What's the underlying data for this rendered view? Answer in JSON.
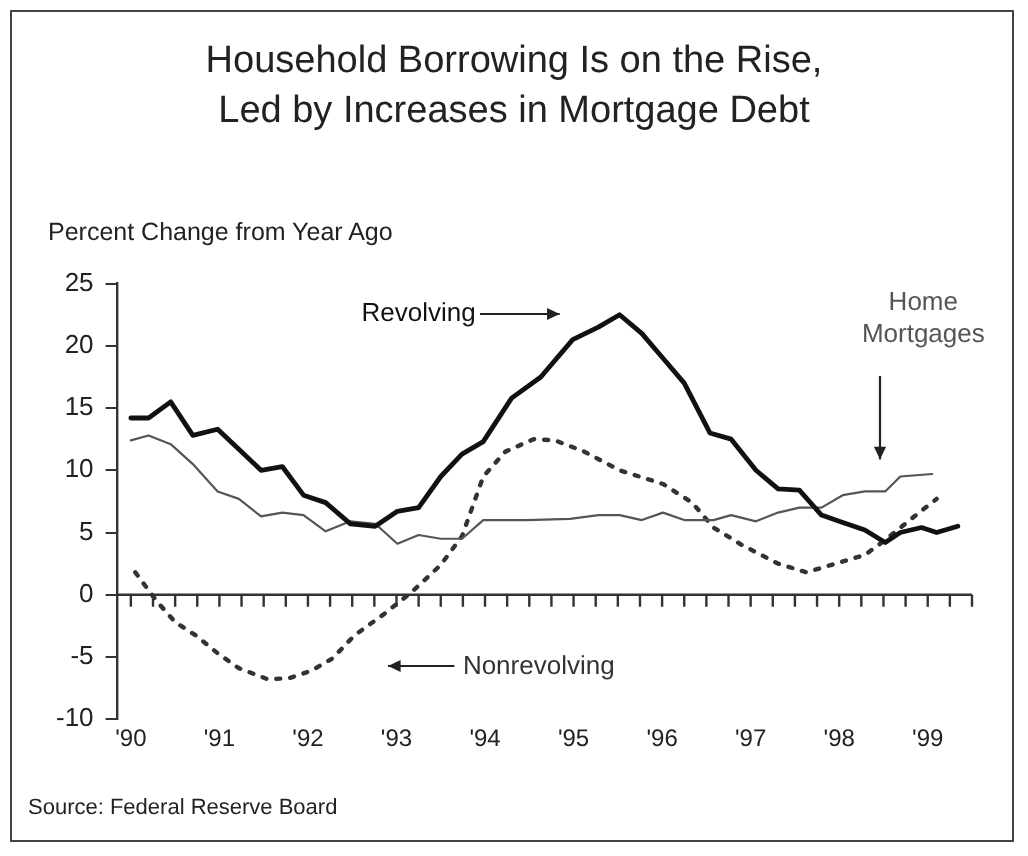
{
  "chart_data": {
    "type": "line",
    "title": "Household Borrowing Is on the Rise, Led by Increases in Mortgage Debt",
    "ylabel": "Percent Change from Year Ago",
    "annotations": [
      "Source: Federal Reserve Board"
    ],
    "xlim": [
      1989.85,
      1999.5
    ],
    "xticks": [
      {
        "value": 1990,
        "label": "'90"
      },
      {
        "value": 1991,
        "label": "'91"
      },
      {
        "value": 1992,
        "label": "'92"
      },
      {
        "value": 1993,
        "label": "'93"
      },
      {
        "value": 1994,
        "label": "'94"
      },
      {
        "value": 1995,
        "label": "'95"
      },
      {
        "value": 1996,
        "label": "'96"
      },
      {
        "value": 1997,
        "label": "'97"
      },
      {
        "value": 1998,
        "label": "'98"
      },
      {
        "value": 1999,
        "label": "'99"
      }
    ],
    "ylim": [
      -10,
      25
    ],
    "yticks": [
      -10,
      -5,
      0,
      5,
      10,
      15,
      20,
      25
    ],
    "grid": false,
    "legend": false,
    "marker": "none",
    "ref_lines": [
      {
        "axis": "y",
        "value": 0,
        "color": "#333333"
      }
    ],
    "series": [
      {
        "name": "Revolving",
        "color": "#111111",
        "line_style": "solid",
        "x": [
          1990.0,
          1990.2,
          1990.45,
          1990.7,
          1990.98,
          1991.22,
          1991.47,
          1991.71,
          1991.95,
          1992.2,
          1992.48,
          1992.76,
          1993.01,
          1993.25,
          1993.5,
          1993.74,
          1993.98,
          1994.3,
          1994.63,
          1994.99,
          1995.28,
          1995.52,
          1995.77,
          1996.01,
          1996.25,
          1996.54,
          1996.78,
          1997.06,
          1997.31,
          1997.55,
          1997.8,
          1998.04,
          1998.29,
          1998.52,
          1998.69,
          1998.93,
          1999.1,
          1999.34
        ],
        "values": [
          14.2,
          14.2,
          15.5,
          12.8,
          13.3,
          11.7,
          10,
          10.3,
          8,
          7.4,
          5.7,
          5.5,
          6.7,
          7,
          9.5,
          11.3,
          12.3,
          15.8,
          17.5,
          20.5,
          21.5,
          22.5,
          21,
          19,
          17,
          13,
          12.5,
          10,
          8.5,
          8.4,
          6.4,
          5.8,
          5.2,
          4.2,
          5,
          5.4,
          5,
          5.5
        ]
      },
      {
        "name": "Home Mortgages",
        "color": "#555555",
        "line_style": "solid",
        "x": [
          1990.0,
          1990.2,
          1990.45,
          1990.7,
          1990.98,
          1991.22,
          1991.47,
          1991.71,
          1991.95,
          1992.2,
          1992.48,
          1992.76,
          1993.01,
          1993.25,
          1993.5,
          1993.74,
          1993.98,
          1994.47,
          1994.96,
          1995.28,
          1995.52,
          1995.77,
          1996.01,
          1996.25,
          1996.58,
          1996.78,
          1997.06,
          1997.31,
          1997.55,
          1997.8,
          1998.04,
          1998.29,
          1998.52,
          1998.69,
          1999.05
        ],
        "values": [
          12.4,
          12.8,
          12.1,
          10.5,
          8.3,
          7.7,
          6.3,
          6.6,
          6.4,
          5.1,
          5.9,
          5.7,
          4.1,
          4.8,
          4.5,
          4.5,
          6,
          6,
          6.1,
          6.4,
          6.4,
          6,
          6.6,
          6,
          6,
          6.4,
          5.9,
          6.6,
          7,
          7,
          8,
          8.3,
          8.3,
          9.5,
          9.7
        ]
      },
      {
        "name": "Nonrevolving",
        "color": "#333333",
        "line_style": "dotted",
        "x": [
          1990.05,
          1990.29,
          1990.5,
          1990.74,
          1990.98,
          1991.22,
          1991.55,
          1991.79,
          1992.04,
          1992.28,
          1992.52,
          1992.85,
          1993.17,
          1993.5,
          1993.74,
          1993.98,
          1994.23,
          1994.55,
          1994.79,
          1995.12,
          1995.52,
          1996.01,
          1996.34,
          1996.58,
          1996.9,
          1997.31,
          1997.63,
          1997.96,
          1998.29,
          1998.52,
          1998.85,
          1999.1
        ],
        "values": [
          1.8,
          -0.5,
          -2.2,
          -3.3,
          -4.7,
          -5.9,
          -6.8,
          -6.7,
          -6.1,
          -5.1,
          -3.3,
          -1.6,
          0.2,
          2.4,
          4.7,
          9.5,
          11.5,
          12.5,
          12.4,
          11.5,
          10,
          8.9,
          7.4,
          5.4,
          4,
          2.5,
          1.8,
          2.5,
          3.2,
          4.4,
          6.3,
          7.7
        ]
      }
    ]
  }
}
